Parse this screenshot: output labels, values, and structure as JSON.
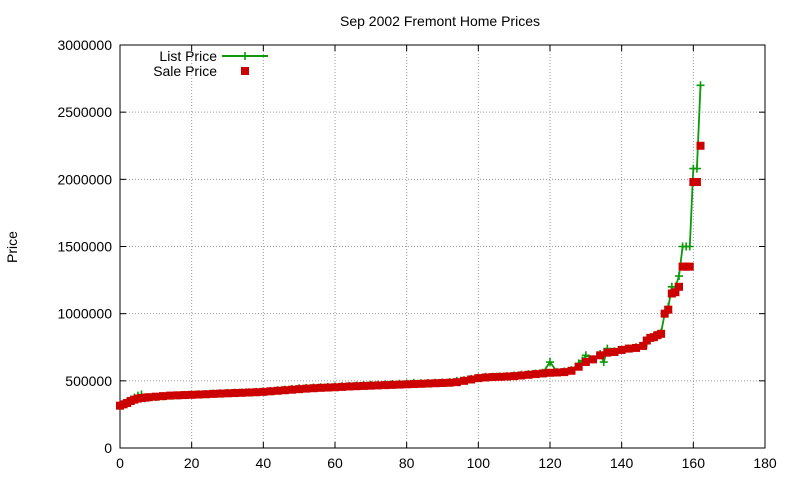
{
  "chart_data": {
    "type": "line",
    "title": "Sep 2002 Fremont Home Prices",
    "xlabel": "",
    "ylabel": "Price",
    "xlim": [
      0,
      180
    ],
    "ylim": [
      0,
      3000000
    ],
    "xticks": [
      0,
      20,
      40,
      60,
      80,
      100,
      120,
      140,
      160,
      180
    ],
    "yticks": [
      0,
      500000,
      1000000,
      1500000,
      2000000,
      2500000,
      3000000
    ],
    "grid": true,
    "legend_position": "top-left",
    "colors": {
      "list": "#0a9a0a",
      "sale": "#cc0000",
      "grid": "#9a9a9a",
      "axis": "#000000"
    },
    "series": [
      {
        "name": "List Price",
        "style": "line-plus",
        "x": [
          0,
          1,
          2,
          3,
          4,
          5,
          6,
          7,
          8,
          10,
          12,
          14,
          16,
          18,
          20,
          22,
          24,
          26,
          28,
          30,
          32,
          34,
          36,
          38,
          40,
          42,
          44,
          46,
          48,
          50,
          52,
          54,
          56,
          58,
          60,
          62,
          64,
          66,
          68,
          70,
          72,
          74,
          76,
          78,
          80,
          82,
          84,
          86,
          88,
          90,
          92,
          94,
          96,
          98,
          100,
          102,
          104,
          106,
          108,
          110,
          112,
          114,
          116,
          118,
          120,
          122,
          124,
          126,
          128,
          129,
          130,
          132,
          134,
          135,
          136,
          138,
          140,
          142,
          144,
          146,
          147,
          148,
          149,
          150,
          151,
          152,
          153,
          154,
          155,
          156,
          157,
          158,
          159,
          160,
          161,
          162
        ],
        "y": [
          320000,
          330000,
          345000,
          360000,
          375000,
          390000,
          398000,
          370000,
          375000,
          380000,
          385000,
          390000,
          392000,
          395000,
          397000,
          400000,
          402000,
          405000,
          408000,
          410000,
          412000,
          413000,
          415000,
          418000,
          420000,
          425000,
          430000,
          435000,
          440000,
          445000,
          448000,
          450000,
          452000,
          455000,
          458000,
          460000,
          462000,
          465000,
          468000,
          470000,
          472000,
          474000,
          476000,
          478000,
          480000,
          485000,
          482000,
          484000,
          486000,
          488000,
          490000,
          500000,
          505000,
          515000,
          525000,
          530000,
          530000,
          532000,
          535000,
          540000,
          545000,
          550000,
          555000,
          560000,
          640000,
          565000,
          570000,
          580000,
          630000,
          650000,
          690000,
          660000,
          700000,
          640000,
          740000,
          720000,
          730000,
          740000,
          750000,
          760000,
          780000,
          820000,
          835000,
          840000,
          860000,
          1000000,
          1050000,
          1200000,
          1200000,
          1280000,
          1500000,
          1500000,
          1500000,
          2080000,
          2080000,
          2700000
        ]
      },
      {
        "name": "Sale Price",
        "style": "square-points",
        "x": [
          0,
          1,
          2,
          3,
          4,
          5,
          6,
          7,
          8,
          10,
          12,
          14,
          16,
          18,
          20,
          22,
          24,
          26,
          28,
          30,
          32,
          34,
          36,
          38,
          40,
          42,
          44,
          46,
          48,
          50,
          52,
          54,
          56,
          58,
          60,
          62,
          64,
          66,
          68,
          70,
          72,
          74,
          76,
          78,
          80,
          82,
          84,
          86,
          88,
          90,
          92,
          94,
          96,
          98,
          100,
          102,
          104,
          106,
          108,
          110,
          112,
          114,
          116,
          118,
          120,
          122,
          124,
          126,
          128,
          130,
          132,
          134,
          136,
          138,
          140,
          142,
          144,
          146,
          147,
          148,
          149,
          150,
          151,
          152,
          153,
          154,
          155,
          156,
          157,
          158,
          159,
          160,
          161,
          162
        ],
        "y": [
          315000,
          325000,
          335000,
          350000,
          360000,
          368000,
          372000,
          375000,
          378000,
          382000,
          386000,
          390000,
          392000,
          394000,
          396000,
          398000,
          400000,
          403000,
          405000,
          407000,
          409000,
          411000,
          413000,
          415000,
          418000,
          422000,
          426000,
          430000,
          434000,
          438000,
          442000,
          445000,
          448000,
          450000,
          452000,
          455000,
          458000,
          460000,
          462000,
          464000,
          466000,
          468000,
          470000,
          472000,
          474000,
          476000,
          478000,
          480000,
          482000,
          484000,
          486000,
          490000,
          500000,
          510000,
          520000,
          525000,
          528000,
          530000,
          532000,
          535000,
          540000,
          545000,
          550000,
          555000,
          560000,
          562000,
          565000,
          575000,
          605000,
          640000,
          660000,
          690000,
          710000,
          715000,
          730000,
          740000,
          745000,
          760000,
          800000,
          820000,
          825000,
          840000,
          850000,
          1000000,
          1030000,
          1150000,
          1160000,
          1200000,
          1350000,
          1350000,
          1350000,
          1980000,
          1980000,
          2250000
        ]
      }
    ]
  }
}
